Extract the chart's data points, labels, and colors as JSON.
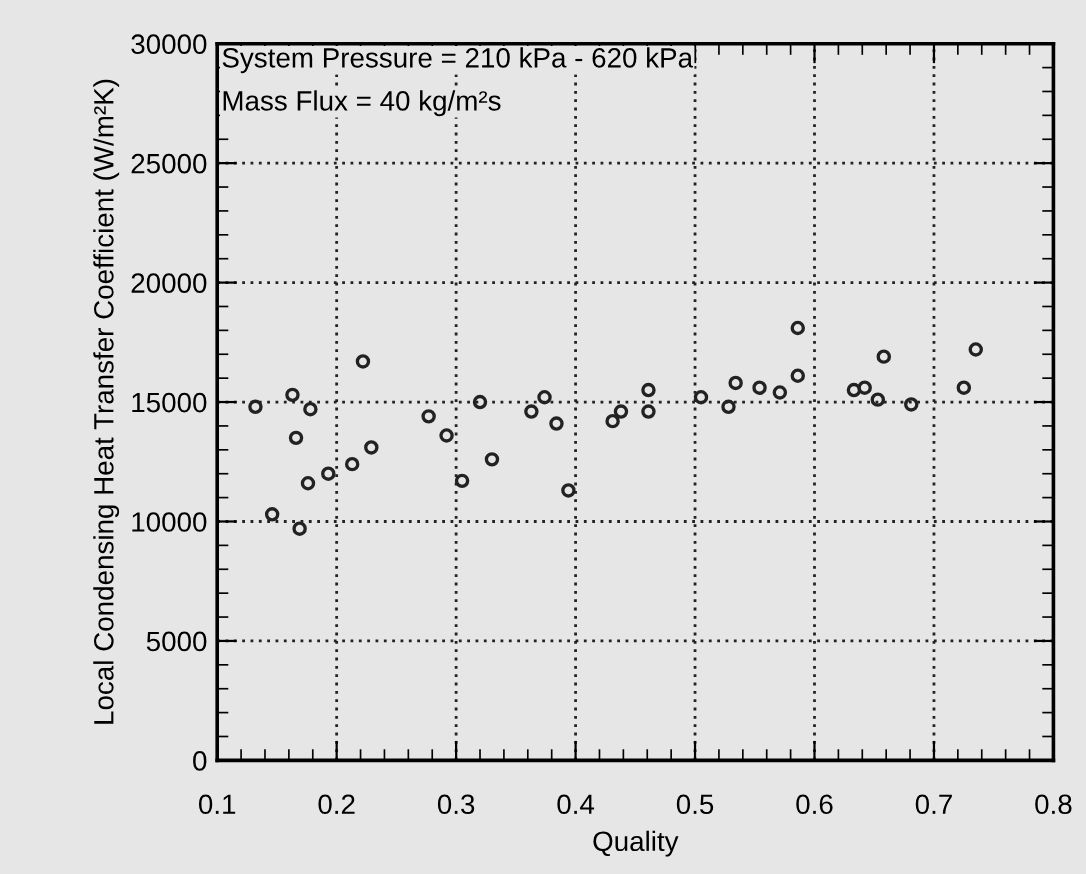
{
  "chart_data": {
    "type": "scatter",
    "xlabel": "Quality",
    "ylabel": "Local Condensing Heat Transfer Coefficient (W/m²K)",
    "annotations": [
      "System Pressure = 210 kPa - 620 kPa",
      "Mass Flux = 40 kg/m²s"
    ],
    "x": [
      0.132,
      0.146,
      0.163,
      0.166,
      0.169,
      0.176,
      0.178,
      0.193,
      0.213,
      0.222,
      0.229,
      0.277,
      0.292,
      0.305,
      0.32,
      0.33,
      0.363,
      0.374,
      0.384,
      0.394,
      0.431,
      0.438,
      0.461,
      0.461,
      0.505,
      0.528,
      0.534,
      0.554,
      0.571,
      0.586,
      0.586,
      0.633,
      0.642,
      0.653,
      0.658,
      0.681,
      0.725,
      0.735
    ],
    "values": [
      14800,
      10300,
      15300,
      13500,
      9700,
      11600,
      14700,
      12000,
      12400,
      16700,
      13100,
      14400,
      13600,
      11700,
      15000,
      12600,
      14600,
      15200,
      14100,
      11300,
      14200,
      14600,
      15500,
      14600,
      15200,
      14800,
      15800,
      15600,
      15400,
      16100,
      18100,
      15500,
      15600,
      15100,
      16900,
      14900,
      15600,
      17200
    ],
    "color": "#222222",
    "marker": "circle",
    "grid": true,
    "legend": false,
    "xlim": [
      0.1,
      0.8
    ],
    "xticks": [
      0.1,
      0.2,
      0.3,
      0.4,
      0.5,
      0.6,
      0.7,
      0.8
    ],
    "ylim": [
      0,
      30000
    ],
    "yticks": [
      0,
      5000,
      10000,
      15000,
      20000,
      25000,
      30000
    ]
  }
}
